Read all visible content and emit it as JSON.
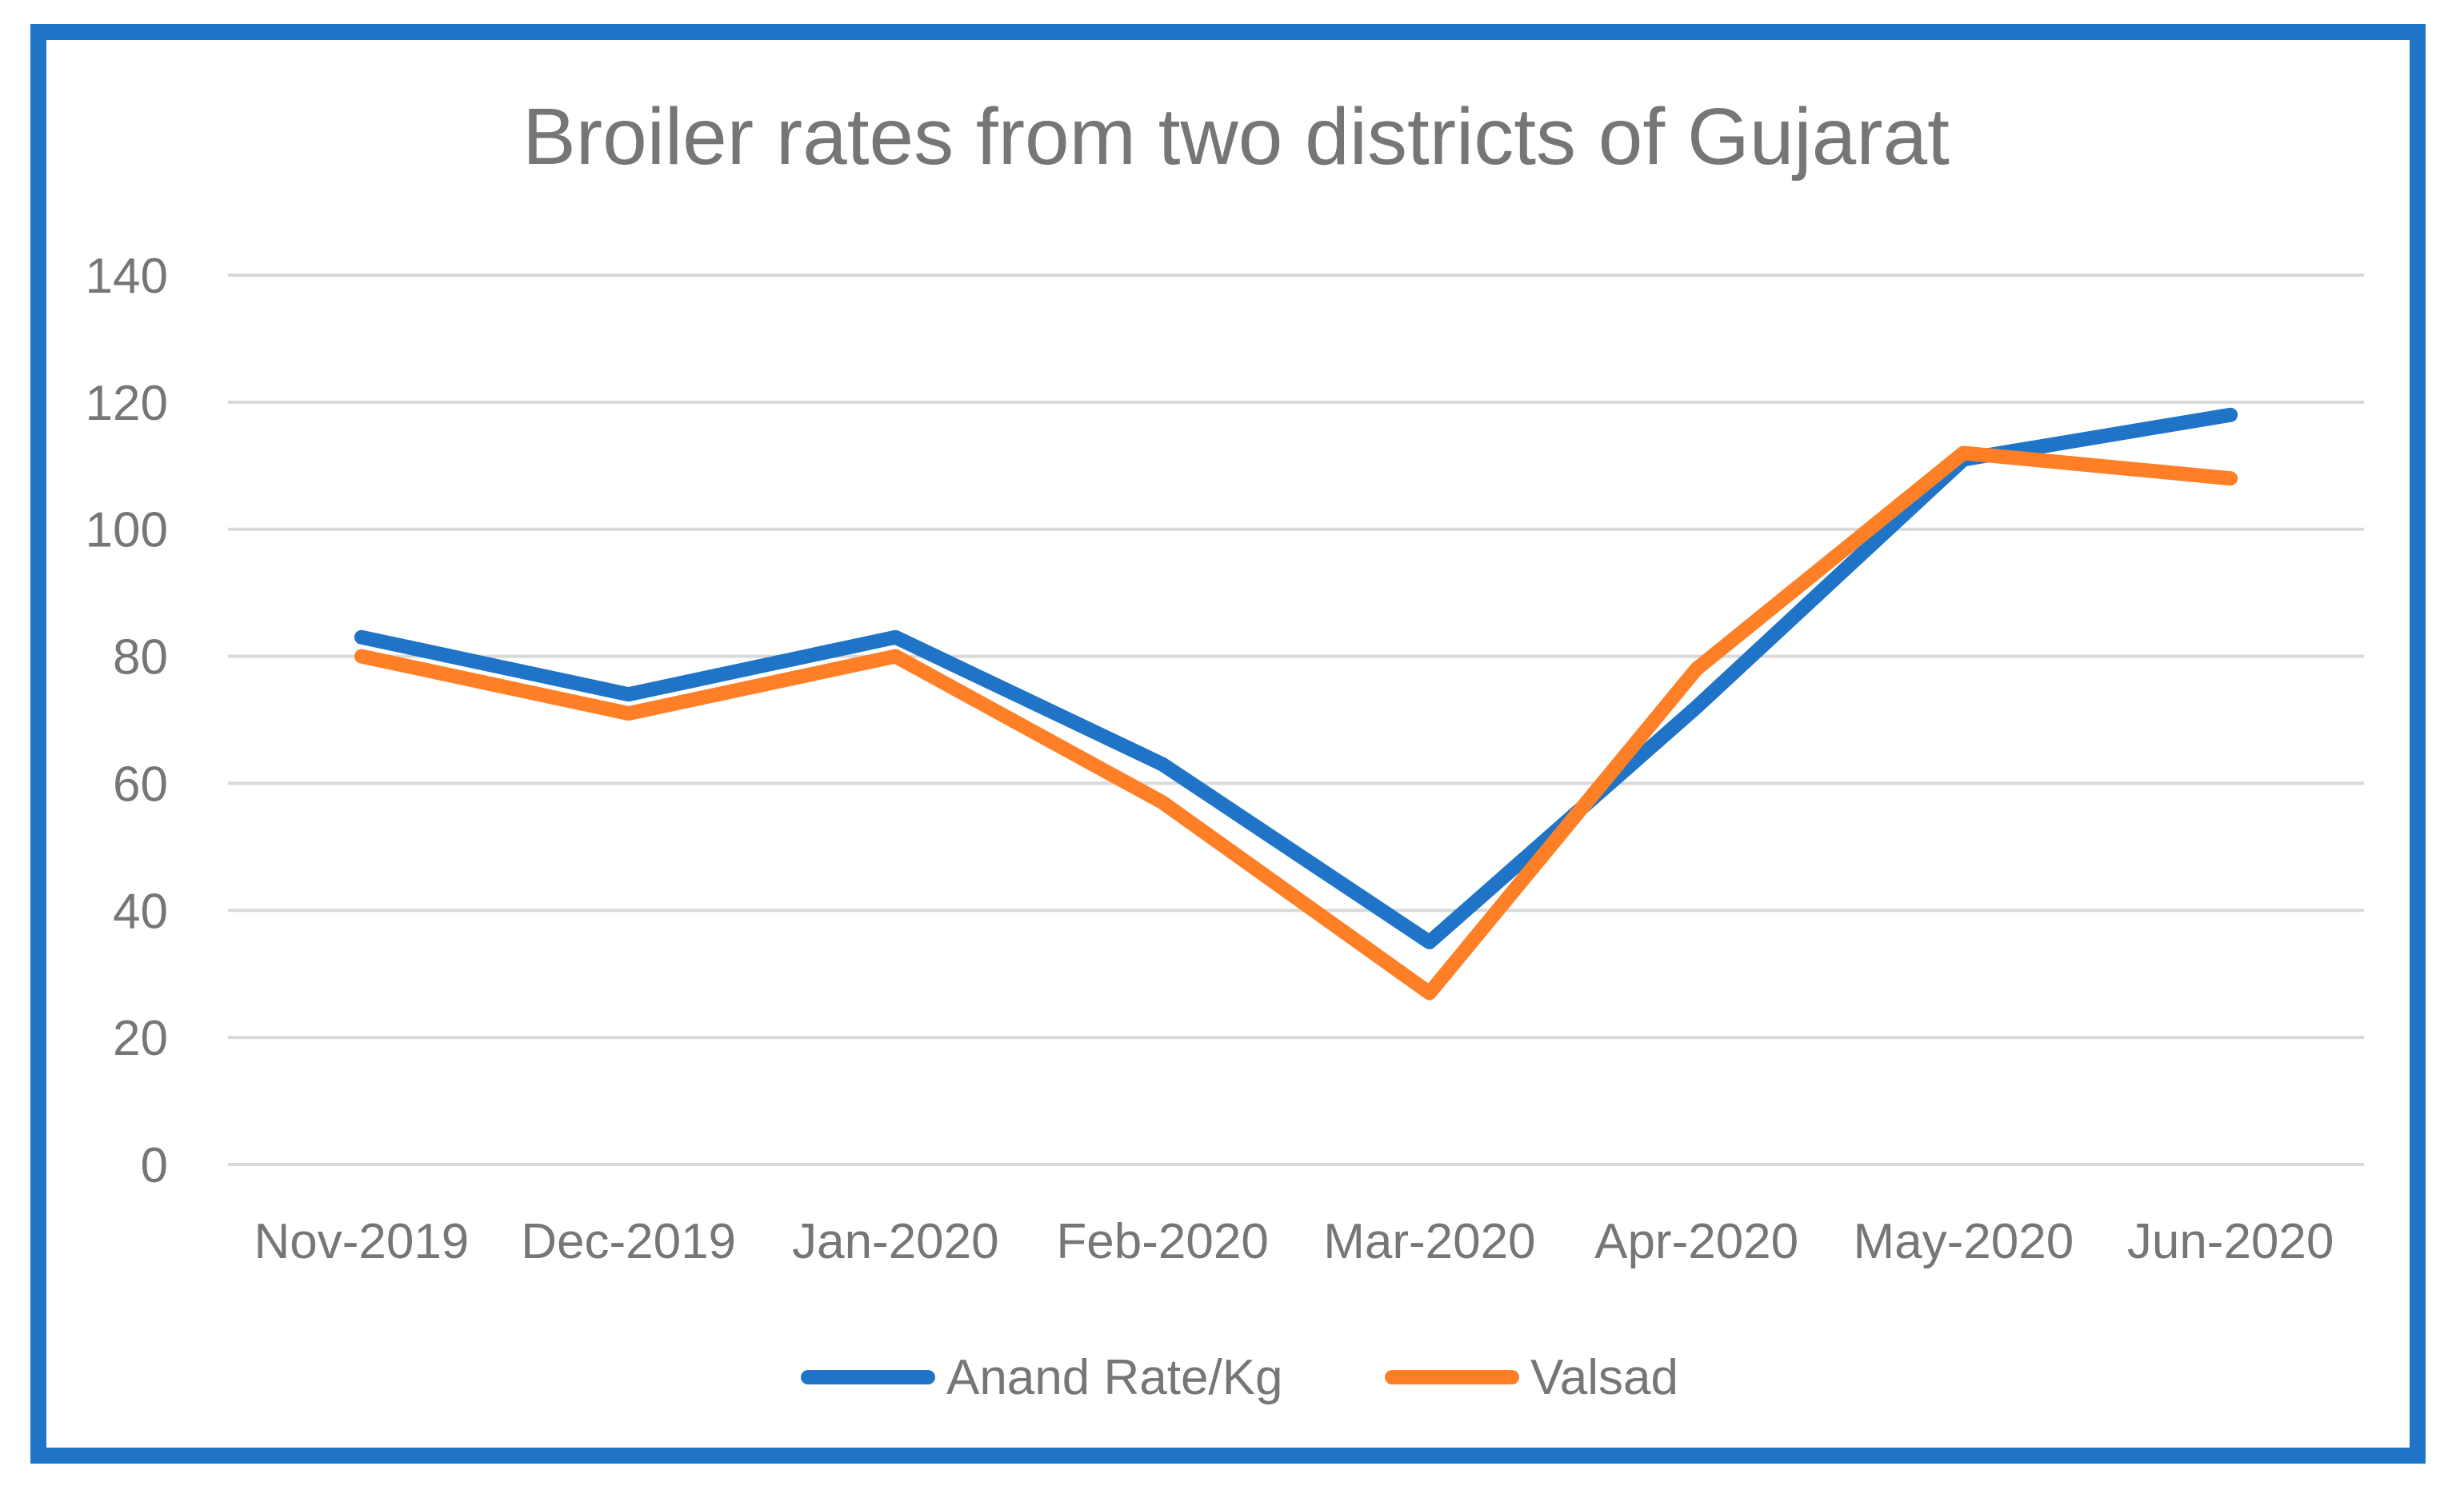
{
  "chart_data": {
    "type": "line",
    "title": "Broiler rates from two districts of Gujarat",
    "xlabel": "",
    "ylabel": "",
    "categories": [
      "Nov-2019",
      "Dec-2019",
      "Jan-2020",
      "Feb-2020",
      "Mar-2020",
      "Apr-2020",
      "May-2020",
      "Jun-2020"
    ],
    "ylim": [
      0,
      140
    ],
    "yticks": [
      0,
      20,
      40,
      60,
      80,
      100,
      120,
      140
    ],
    "grid": true,
    "legend_position": "bottom",
    "series": [
      {
        "name": "Anand Rate/Kg",
        "color": "#1F74C8",
        "values": [
          83,
          74,
          83,
          63,
          35,
          72,
          111,
          118
        ]
      },
      {
        "name": "Valsad",
        "color": "#FF7F27",
        "values": [
          80,
          71,
          80,
          57,
          27,
          78,
          112,
          108
        ]
      }
    ]
  },
  "colors": {
    "border": "#1F74C8",
    "grid": "#D9D9D9",
    "text": "#767676"
  }
}
